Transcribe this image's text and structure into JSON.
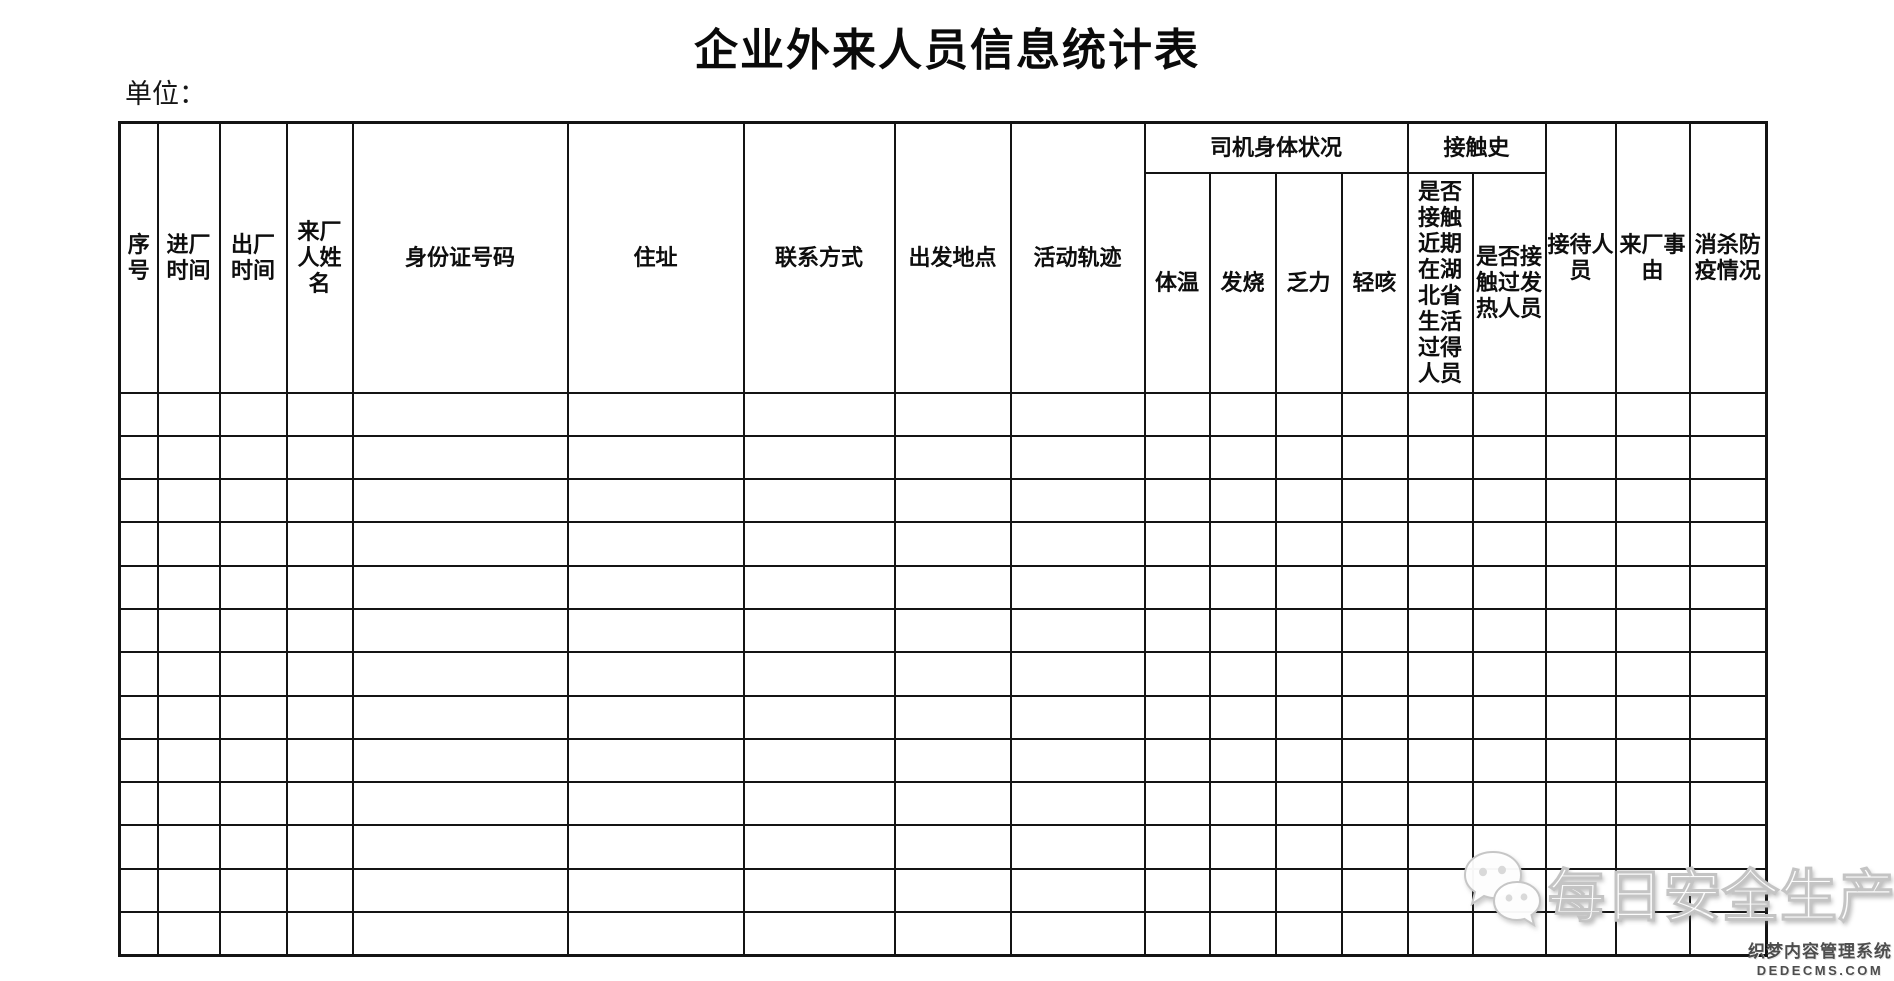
{
  "page": {
    "title": "企业外来人员信息统计表",
    "unit_label": "单位："
  },
  "table": {
    "headers_left": [
      "序号",
      "进厂时间",
      "出厂时间",
      "来厂人姓名",
      "身份证号码",
      "住址",
      "联系方式",
      "出发地点",
      "活动轨迹"
    ],
    "driver_health_group": {
      "label": "司机身体状况",
      "sub": [
        "体温",
        "发烧",
        "乏力",
        "轻咳"
      ]
    },
    "contact_history_group": {
      "label": "接触史",
      "sub": [
        "是否接触近期在湖北省生活过得人员",
        "是否接触过发热人员"
      ]
    },
    "headers_right": [
      "接待人员",
      "来厂事由",
      "消杀防疫情况"
    ],
    "data_row_count": 13,
    "column_count": 18
  },
  "watermark": {
    "logo_icon": "wechat-logo-icon",
    "text": "每日安全生产"
  },
  "footer": {
    "cms_name": "织梦内容管理系统",
    "cms_domain": "DEDECMS.COM"
  },
  "colors": {
    "border": "#141414",
    "watermark_text": "#ffffff",
    "cms_text": "#4d4d4d"
  }
}
